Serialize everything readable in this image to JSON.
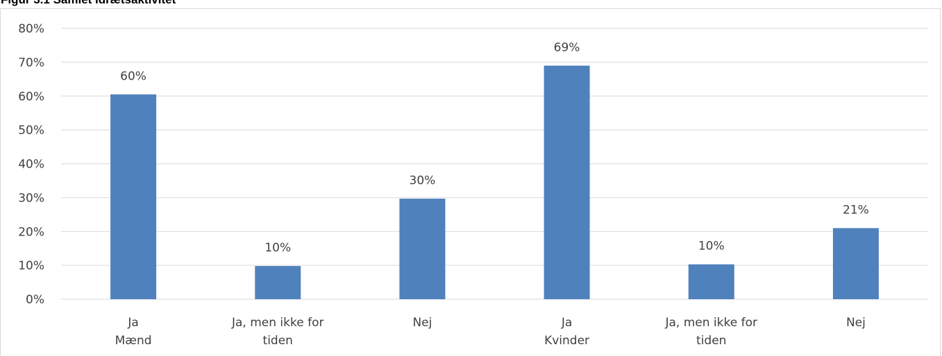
{
  "figure_title": "Figur 3.1 Samlet idrætsaktivitet",
  "colors": {
    "bar": "#4f81bd",
    "grid": "#d9d9d9",
    "text": "#404040"
  },
  "chart_data": {
    "type": "bar",
    "title": "Figur 3.1 Samlet idrætsaktivitet",
    "categories": [
      "Ja",
      "Ja, men ikke for tiden",
      "Nej",
      "Ja",
      "Ja, men ikke for tiden",
      "Nej"
    ],
    "groups": [
      {
        "name": "Mænd",
        "categories": [
          "Ja",
          "Ja, men ikke for tiden",
          "Nej"
        ]
      },
      {
        "name": "Kvinder",
        "categories": [
          "Ja",
          "Ja, men ikke for tiden",
          "Nej"
        ]
      }
    ],
    "values": [
      60.5,
      9.8,
      29.7,
      69,
      10.3,
      21
    ],
    "data_labels": [
      "60%",
      "10%",
      "30%",
      "69%",
      "10%",
      "21%"
    ],
    "y_ticks": [
      "0%",
      "10%",
      "20%",
      "30%",
      "40%",
      "50%",
      "60%",
      "70%",
      "80%"
    ],
    "ylim": [
      0,
      80
    ],
    "grid": true,
    "legend": "none"
  }
}
